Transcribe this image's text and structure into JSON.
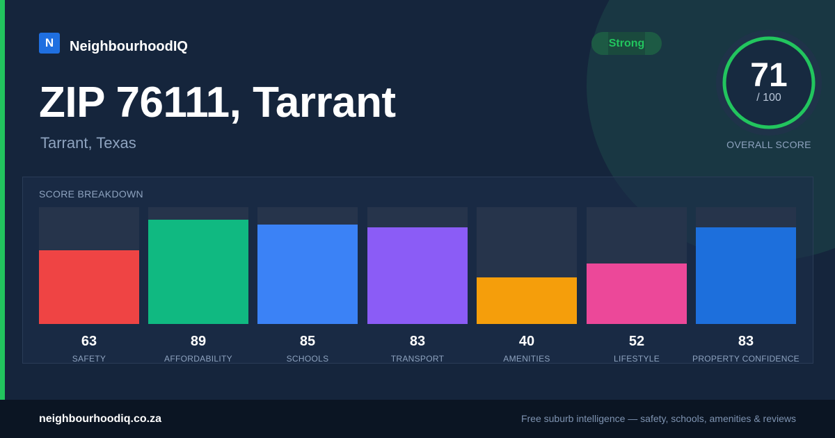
{
  "brand": {
    "logo_letter": "N",
    "name": "NeighbourhoodIQ",
    "logo_color": "#1f6fe0"
  },
  "header": {
    "title": "ZIP 76111, Tarrant",
    "subtitle": "Tarrant, Texas"
  },
  "badge": {
    "label": "Strong",
    "color": "#22c55e"
  },
  "overall": {
    "score": "71",
    "denominator": "/ 100",
    "max": 100,
    "label": "OVERALL SCORE",
    "ring_color": "#22c55e"
  },
  "breakdown": {
    "title": "SCORE BREAKDOWN",
    "items": [
      {
        "label": "SAFETY",
        "value": "63",
        "fraction": 0.63,
        "color": "#ef4444"
      },
      {
        "label": "AFFORDABILITY",
        "value": "89",
        "fraction": 0.89,
        "color": "#10b981"
      },
      {
        "label": "SCHOOLS",
        "value": "85",
        "fraction": 0.85,
        "color": "#3b82f6"
      },
      {
        "label": "TRANSPORT",
        "value": "83",
        "fraction": 0.83,
        "color": "#8b5cf6"
      },
      {
        "label": "AMENITIES",
        "value": "40",
        "fraction": 0.4,
        "color": "#f59e0b"
      },
      {
        "label": "LIFESTYLE",
        "value": "52",
        "fraction": 0.52,
        "color": "#ec4899"
      },
      {
        "label": "PROPERTY CONFIDENCE",
        "value": "83",
        "fraction": 0.83,
        "color": "#1d6fdc"
      }
    ]
  },
  "footer": {
    "url": "neighbourhoodiq.co.za",
    "tagline": "Free suburb intelligence — safety, schools, amenities & reviews"
  }
}
